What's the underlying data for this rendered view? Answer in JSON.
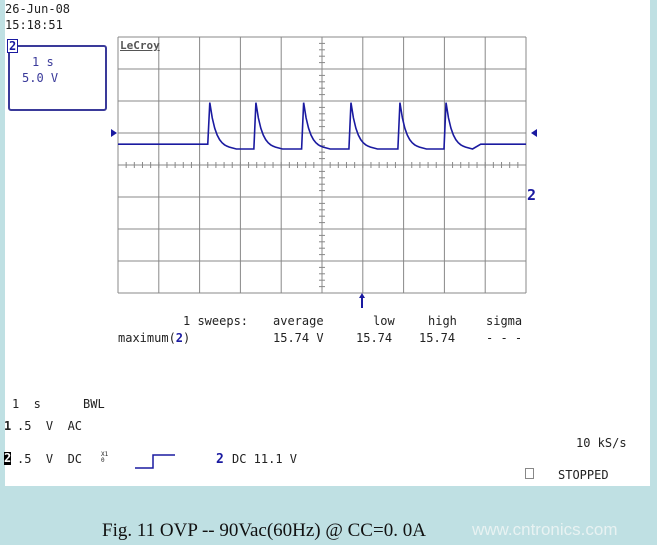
{
  "header": {
    "date": "26-Jun-08",
    "time": "15:18:51"
  },
  "channel_box": {
    "channel": "2",
    "timebase": "1 s",
    "volts": "5.0 V"
  },
  "brand": "LeCroy",
  "trace_label": "2",
  "measure": {
    "sweeps": "1 sweeps:",
    "headers": [
      "average",
      "low",
      "high",
      "sigma"
    ],
    "param": "maximum(",
    "param_ch": "2",
    "param_end": ")",
    "values": [
      "15.74 V",
      "15.74",
      "15.74",
      "- - -"
    ]
  },
  "settings": {
    "timebase": "1  s",
    "bwl": "BWL",
    "ch1_num": "1",
    "ch1": ".5  V  AC",
    "ch2_num": "2",
    "ch2": ".5  V  DC",
    "probe": "X10",
    "trig_ch": "2",
    "trig": "DC 11.1 V",
    "sample_rate": "10 kS/s",
    "status": "STOPPED"
  },
  "caption": "Fig. 11  OVP   --  90Vac(60Hz) @ CC=0. 0A",
  "watermark": "www.cntronics.com",
  "chart_data": {
    "type": "line",
    "xlabel": "",
    "ylabel": "",
    "x_unit": "s",
    "x_per_div": 1,
    "y_per_div_V": 5.0,
    "xlim": [
      0,
      10
    ],
    "ylim_div": [
      -4,
      4
    ],
    "grid": true,
    "pulse_times_s": [
      2.2,
      3.33,
      4.5,
      5.66,
      6.86,
      7.99
    ],
    "baseline_div": 0.65,
    "peak_div": 1.95,
    "settled_div": 0.5,
    "color": "#1a1aa0"
  }
}
